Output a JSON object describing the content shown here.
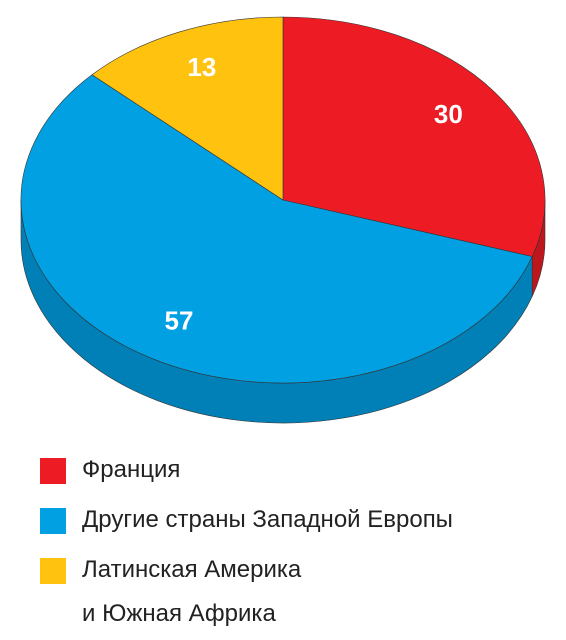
{
  "chart_data": {
    "type": "pie",
    "categories": [
      "Франция",
      "Другие страны Западной Европы",
      "Латинская Америка\nи Южная Африка"
    ],
    "values": [
      30,
      57,
      13
    ],
    "colors": [
      "#ed1c24",
      "#00a0e3",
      "#ffc20e"
    ]
  }
}
